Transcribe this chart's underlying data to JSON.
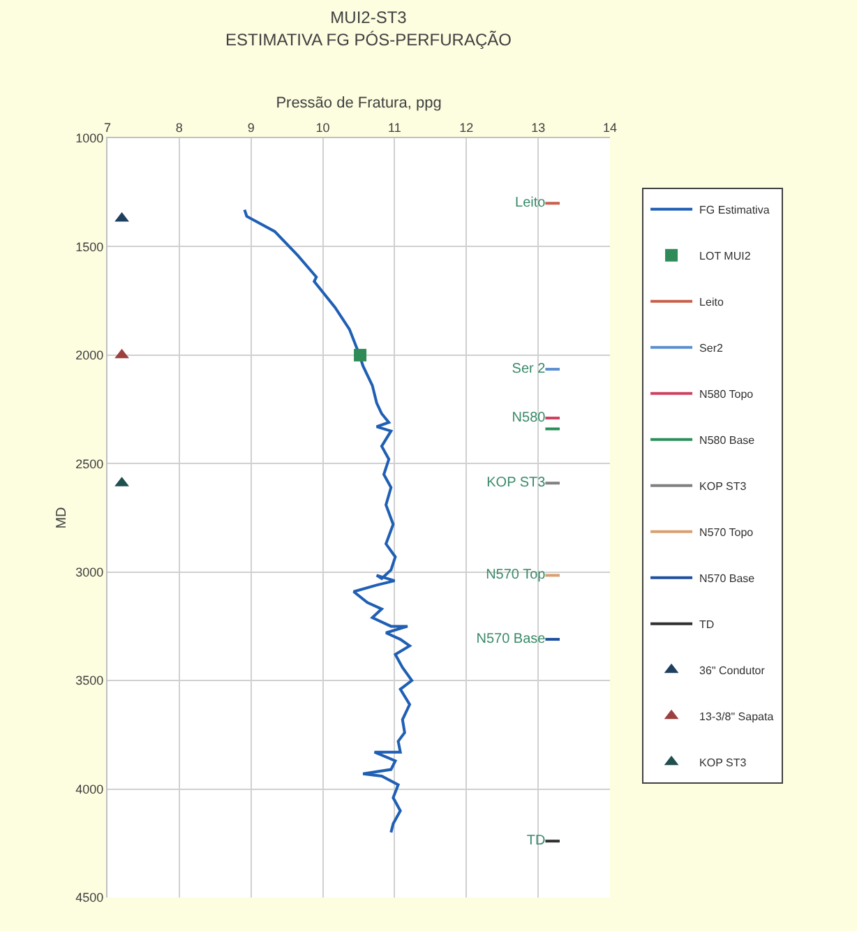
{
  "chart_data": {
    "type": "line",
    "title": "MUI2-ST3\nESTIMATIVA FG PÓS-PERFURAÇÃO",
    "xlabel": "Pressão de Fratura, ppg",
    "ylabel": "MD",
    "xlim": [
      7,
      14
    ],
    "xticks": [
      7,
      8,
      9,
      10,
      11,
      12,
      13,
      14
    ],
    "ylim": [
      4500,
      1000
    ],
    "yticks": [
      1000,
      1500,
      2000,
      2500,
      3000,
      3500,
      4000,
      4500
    ],
    "grid": true,
    "legend": "right",
    "series": [
      {
        "name": "FG Estimativa",
        "color": "#1f5fb4",
        "line_style": "solid",
        "marker": "none",
        "x": [
          8.91,
          8.94,
          9.33,
          9.65,
          9.91,
          9.88,
          10.17,
          10.37,
          10.5,
          10.56,
          10.69,
          10.75,
          10.82,
          10.92,
          10.75,
          10.95,
          10.82,
          10.92,
          10.85,
          10.95,
          10.88,
          10.98,
          10.88,
          11.01,
          10.95,
          10.82,
          10.75,
          11.0,
          10.75,
          10.43,
          10.62,
          10.82,
          10.69,
          10.95,
          11.18,
          10.88,
          11.08,
          11.21,
          11.01,
          11.11,
          11.24,
          11.08,
          11.21,
          11.11,
          11.14,
          11.05,
          11.08,
          10.72,
          11.01,
          10.95,
          10.56,
          10.82,
          11.05,
          10.98,
          11.08,
          10.98,
          10.95
        ],
        "values": [
          1330,
          1360,
          1430,
          1540,
          1640,
          1660,
          1780,
          1880,
          1990,
          2050,
          2140,
          2220,
          2270,
          2310,
          2330,
          2350,
          2420,
          2480,
          2550,
          2610,
          2690,
          2780,
          2870,
          2930,
          2990,
          3030,
          3015,
          3040,
          3060,
          3090,
          3140,
          3170,
          3210,
          3250,
          3250,
          3280,
          3310,
          3340,
          3380,
          3440,
          3500,
          3540,
          3610,
          3680,
          3740,
          3780,
          3830,
          3830,
          3870,
          3910,
          3930,
          3940,
          3980,
          4040,
          4100,
          4160,
          4200
        ]
      },
      {
        "name": "LOT MUI2",
        "type": "scatter",
        "marker": "square",
        "color": "#2e8b57",
        "x": [
          10.52
        ],
        "values": [
          2000
        ]
      },
      {
        "name": "Leito",
        "type": "line",
        "line_style": "solid",
        "marker": "none",
        "color": "#c8604a",
        "x": [
          13.1,
          13.3
        ],
        "values": [
          1300,
          1300
        ],
        "value_labels": [
          "Leito",
          null
        ]
      },
      {
        "name": "Ser2",
        "type": "line",
        "line_style": "solid",
        "marker": "none",
        "color": "#5b8fd0",
        "x": [
          13.1,
          13.3
        ],
        "values": [
          2065,
          2065
        ],
        "value_labels": [
          "Ser 2",
          null
        ]
      },
      {
        "name": "N580 Topo",
        "type": "line",
        "line_style": "solid",
        "marker": "none",
        "color": "#d04060",
        "x": [
          13.1,
          13.3
        ],
        "values": [
          2290,
          2290
        ],
        "value_labels": [
          "N580",
          null
        ]
      },
      {
        "name": "N580 Base",
        "type": "line",
        "line_style": "solid",
        "marker": "none",
        "color": "#2a8f5a",
        "x": [
          13.1,
          13.3
        ],
        "values": [
          2340,
          2340
        ]
      },
      {
        "name": "KOP ST3",
        "type": "line",
        "line_style": "solid",
        "marker": "none",
        "color": "#808080",
        "x": [
          13.1,
          13.3
        ],
        "values": [
          2590,
          2590
        ],
        "value_labels": [
          "KOP ST3",
          null
        ]
      },
      {
        "name": "N570 Topo",
        "type": "line",
        "line_style": "solid",
        "marker": "none",
        "color": "#d8a070",
        "x": [
          13.1,
          13.3
        ],
        "values": [
          3015,
          3015
        ],
        "value_labels": [
          "N570 Top",
          null
        ]
      },
      {
        "name": "N570 Base",
        "type": "line",
        "line_style": "solid",
        "marker": "none",
        "color": "#1f4f9f",
        "x": [
          13.1,
          13.3
        ],
        "values": [
          3310,
          3310
        ],
        "value_labels": [
          "N570 Base",
          null
        ]
      },
      {
        "name": "TD",
        "type": "line",
        "line_style": "solid",
        "marker": "none",
        "color": "#303030",
        "x": [
          13.1,
          13.3
        ],
        "values": [
          4240,
          4240
        ],
        "value_labels": [
          "TD",
          null
        ]
      },
      {
        "name": "36\" Condutor",
        "type": "scatter",
        "marker": "triangle",
        "color": "#1f3f5f",
        "x": [
          7.2
        ],
        "values": [
          1370
        ]
      },
      {
        "name": "13-3/8\" Sapata",
        "type": "scatter",
        "marker": "triangle",
        "color": "#9c3f3f",
        "x": [
          7.2
        ],
        "values": [
          2000
        ]
      },
      {
        "name": "KOP ST3",
        "type": "scatter",
        "marker": "triangle",
        "color": "#1f4f4f",
        "x": [
          7.2
        ],
        "values": [
          2590
        ]
      }
    ]
  }
}
